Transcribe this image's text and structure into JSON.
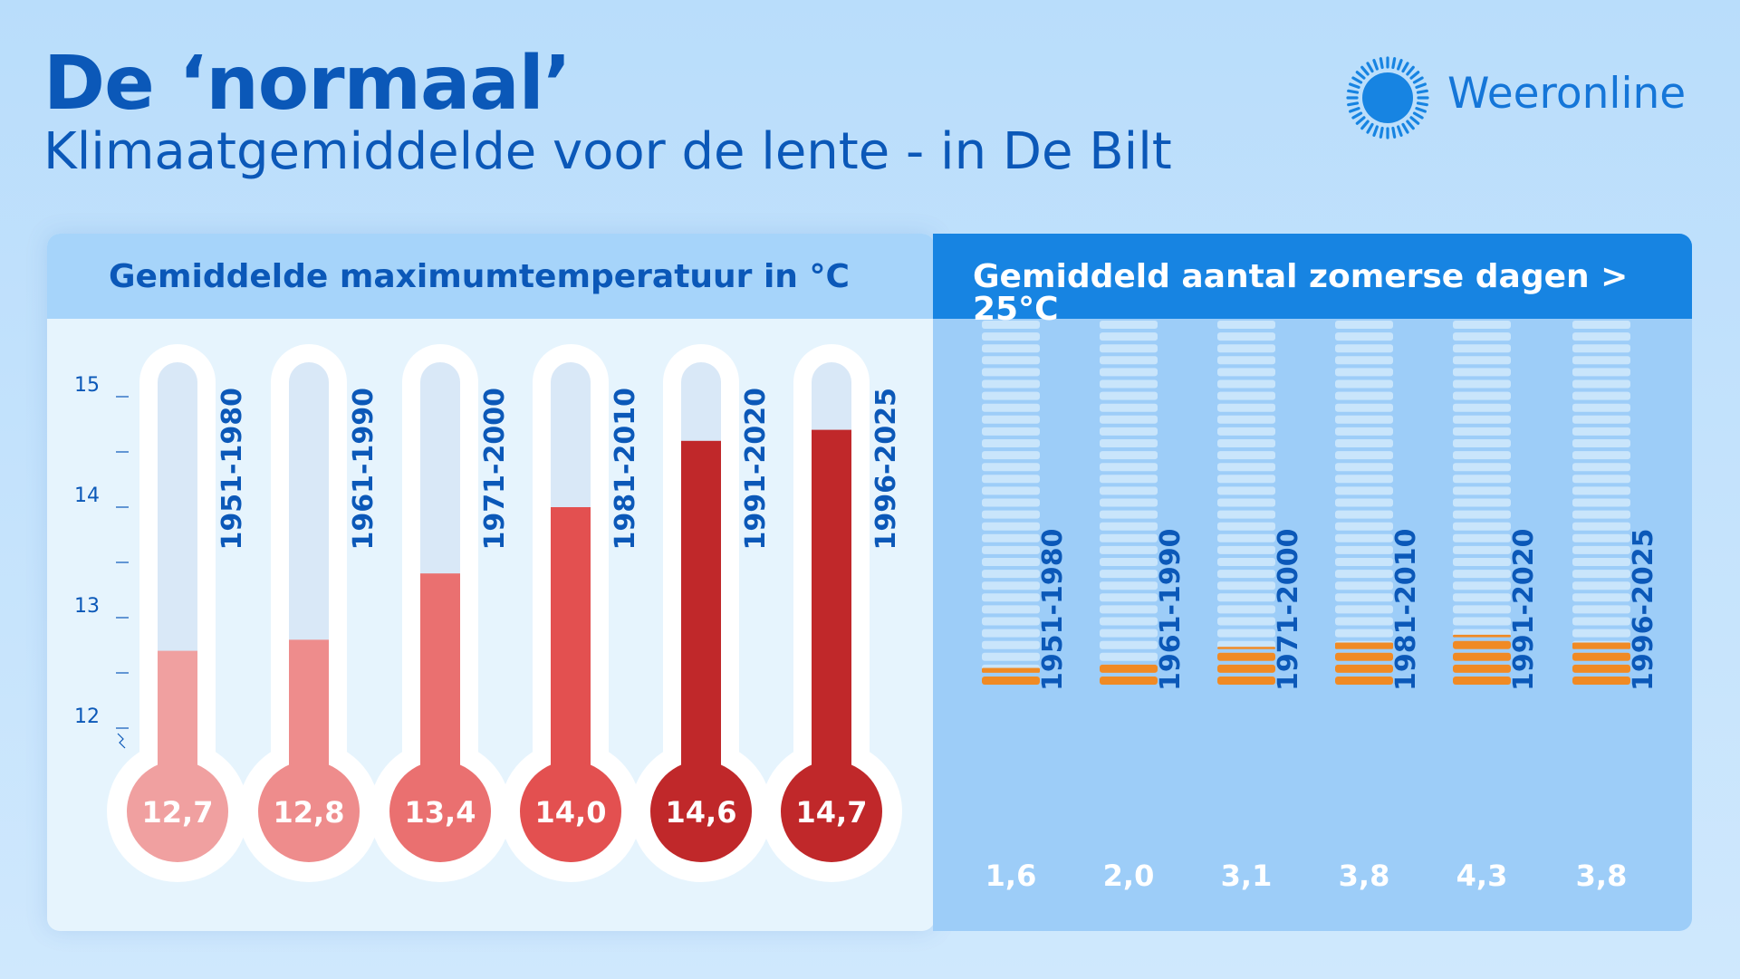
{
  "header": {
    "title": "De ‘normaal’",
    "subtitle": "Klimaatgemiddelde voor de lente - in De Bilt"
  },
  "brand": {
    "name": "Weeronline",
    "logo_icon": "sun-icon"
  },
  "colors": {
    "brand_blue": "#0b58b8",
    "accent_blue": "#1784e2",
    "orange": "#f08a24",
    "red_dark": "#c0282a",
    "red_light": "#f0a0a0"
  },
  "chart_data": [
    {
      "type": "bar",
      "title": "Gemiddelde maximumtemperatuur in °C",
      "categories": [
        "1951-1980",
        "1961-1990",
        "1971-2000",
        "1981-2010",
        "1991-2020",
        "1996-2025"
      ],
      "values": [
        12.7,
        12.8,
        13.4,
        14.0,
        14.6,
        14.7
      ],
      "value_labels": [
        "12,7",
        "12,8",
        "13,4",
        "14,0",
        "14,6",
        "14,7"
      ],
      "yticks": [
        "12",
        "13",
        "14",
        "15"
      ],
      "ylim": [
        12,
        15
      ],
      "fill_colors": [
        "#f0a0a0",
        "#ee8c8c",
        "#ea7070",
        "#e35050",
        "#c0282a",
        "#c0282a"
      ]
    },
    {
      "type": "bar",
      "title_parts": [
        "Gemiddeld aantal ",
        "zomerse dagen",
        " > 25°C"
      ],
      "categories": [
        "1951-1980",
        "1961-1990",
        "1971-2000",
        "1981-2010",
        "1991-2020",
        "1996-2025"
      ],
      "values": [
        1.6,
        2.0,
        3.1,
        3.8,
        4.3,
        3.8
      ],
      "value_labels": [
        "1,6",
        "2,0",
        "3,1",
        "3,8",
        "4,3",
        "3,8"
      ],
      "max_days": 31
    }
  ]
}
